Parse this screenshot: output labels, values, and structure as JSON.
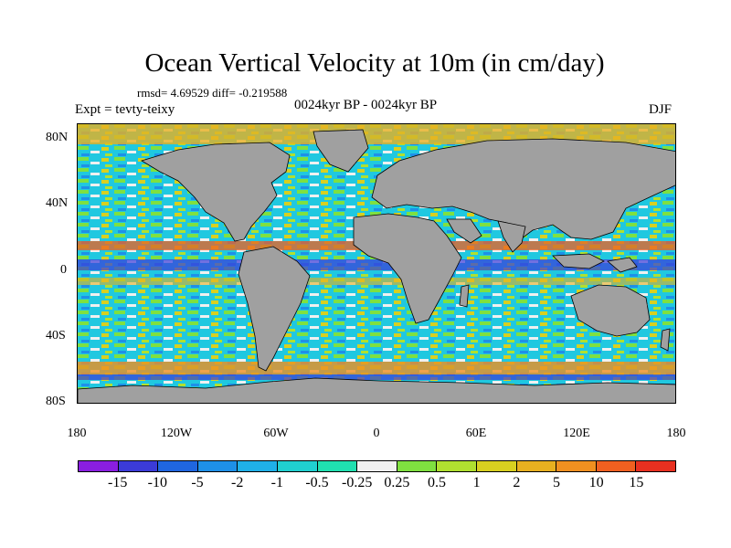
{
  "title": "Ocean Vertical Velocity at 10m (in cm/day)",
  "stats": "rmsd= 4.69529  diff= -0.219588",
  "experiment": "Expt = tevty-teixy",
  "period": "0024kyr BP - 0024kyr BP",
  "season": "DJF",
  "lat_labels": [
    "80N",
    "40N",
    "0",
    "40S",
    "80S"
  ],
  "lon_labels": [
    "180",
    "120W",
    "60W",
    "0",
    "60E",
    "120E",
    "180"
  ],
  "land_color": "#a0a0a0",
  "colorbar": {
    "colors": [
      "#8a1ee0",
      "#3b3bd8",
      "#1f66e0",
      "#1e90e8",
      "#1fb0e8",
      "#20d0d0",
      "#20e0b0",
      "#f0f0f0",
      "#7fe040",
      "#b0e030",
      "#d8d020",
      "#e8b020",
      "#f09020",
      "#f06020",
      "#e83020"
    ],
    "labels": [
      "-15",
      "-10",
      "-5",
      "-2",
      "-1",
      "-0.5",
      "-0.25",
      "0.25",
      "0.5",
      "1",
      "2",
      "5",
      "10",
      "15"
    ]
  }
}
